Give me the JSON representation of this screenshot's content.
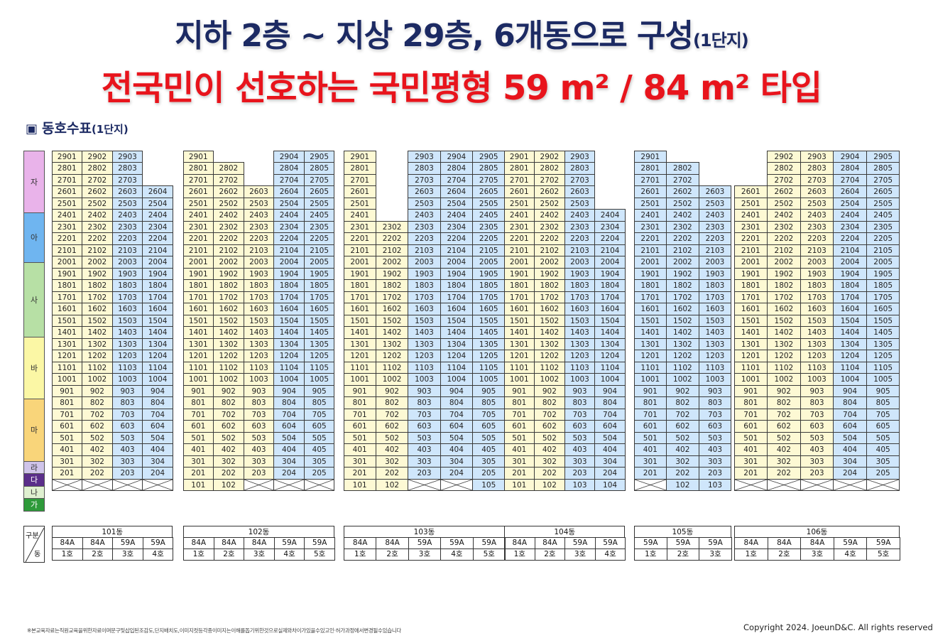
{
  "title": {
    "line1_main": "지하 2층 ~ 지상 29층, 6개동으로 구성",
    "line1_suffix": "(1단지)",
    "line2": "전국민이 선호하는 국민평형 59 m² / 84 m² 타입"
  },
  "section": {
    "icon": "▣",
    "label": "동호수표",
    "suffix": "(1단지)"
  },
  "floor_legend": [
    {
      "label": "자",
      "floors": [
        26,
        29
      ],
      "color": "#e9b3ea"
    },
    {
      "label": "아",
      "floors": [
        21,
        24
      ],
      "color": "#6fb5f0"
    },
    {
      "label": "사",
      "floors": [
        15,
        20
      ],
      "color": "#b7e0a5"
    },
    {
      "label": "바",
      "floors": [
        10,
        14
      ],
      "color": "#fbf7a5"
    },
    {
      "label": "마",
      "floors": [
        5,
        9
      ],
      "color": "#f9d57a"
    },
    {
      "label": "라",
      "floors": [
        4,
        4
      ],
      "color": "#cfc4ea"
    },
    {
      "label": "다",
      "floors": [
        3,
        3
      ],
      "color": "#5a2e8a"
    },
    {
      "label": "나",
      "floors": [
        2,
        2
      ],
      "color": "#dff0d0"
    },
    {
      "label": "가",
      "floors": [
        1,
        1
      ],
      "color": "#2e9a3a"
    }
  ],
  "buildings": [
    {
      "name": "101동",
      "units": 4,
      "types": [
        "84A",
        "84A",
        "59A",
        "59A"
      ],
      "lines": [
        "1호",
        "2호",
        "3호",
        "4호"
      ],
      "top": [
        29,
        29,
        29,
        26
      ],
      "first_floor": [
        "x",
        "x",
        "x",
        "x"
      ]
    },
    {
      "name": "102동",
      "units": 5,
      "types": [
        "84A",
        "84A",
        "84A",
        "59A",
        "59A"
      ],
      "lines": [
        "1호",
        "2호",
        "3호",
        "4호",
        "5호"
      ],
      "top": [
        29,
        28,
        26,
        29,
        29
      ],
      "first_floor": [
        "101",
        "102",
        "x",
        "x",
        "x"
      ]
    },
    {
      "name": "103동",
      "units": 5,
      "types": [
        "84A",
        "84A",
        "59A",
        "59A",
        "59A"
      ],
      "lines": [
        "1호",
        "2호",
        "3호",
        "4호",
        "5호"
      ],
      "top": [
        29,
        23,
        29,
        29,
        29
      ],
      "first_floor": [
        "101",
        "102",
        "x",
        "x",
        "105"
      ]
    },
    {
      "name": "104동",
      "units": 4,
      "types": [
        "84A",
        "84A",
        "59A",
        "59A"
      ],
      "lines": [
        "1호",
        "2호",
        "3호",
        "4호"
      ],
      "top": [
        29,
        29,
        29,
        24
      ],
      "first_floor": [
        "101",
        "102",
        "103",
        "104"
      ]
    },
    {
      "name": "105동",
      "units": 3,
      "types": [
        "59A",
        "59A",
        "59A"
      ],
      "lines": [
        "1호",
        "2호",
        "3호"
      ],
      "top": [
        29,
        28,
        26
      ],
      "first_floor": [
        "x",
        "102",
        "103"
      ]
    },
    {
      "name": "106동",
      "units": 5,
      "types": [
        "84A",
        "84A",
        "84A",
        "59A",
        "59A"
      ],
      "lines": [
        "1호",
        "2호",
        "3호",
        "4호",
        "5호"
      ],
      "top": [
        26,
        29,
        29,
        29,
        29
      ],
      "first_floor": [
        "x",
        "x",
        "x",
        "x",
        "x"
      ]
    }
  ],
  "info_corner": {
    "top_label": "구분",
    "bottom_label": "동"
  },
  "footnote": "※본교육자료는직원교육을위한자료이며문구및삽입된조감도,단지배치도,이미지컷등각종이미지는이해를돕기위한것으로실제와차이가있을수있고인·허가과정에서변경될수있습니다",
  "copyright": "Copyright 2024. JoeunD&C. All rights reserved",
  "colors": {
    "type59": "#cfe6fb",
    "type84": "#fdf9d4",
    "title_navy": "#1c2a63",
    "title_red": "#e8141c"
  }
}
